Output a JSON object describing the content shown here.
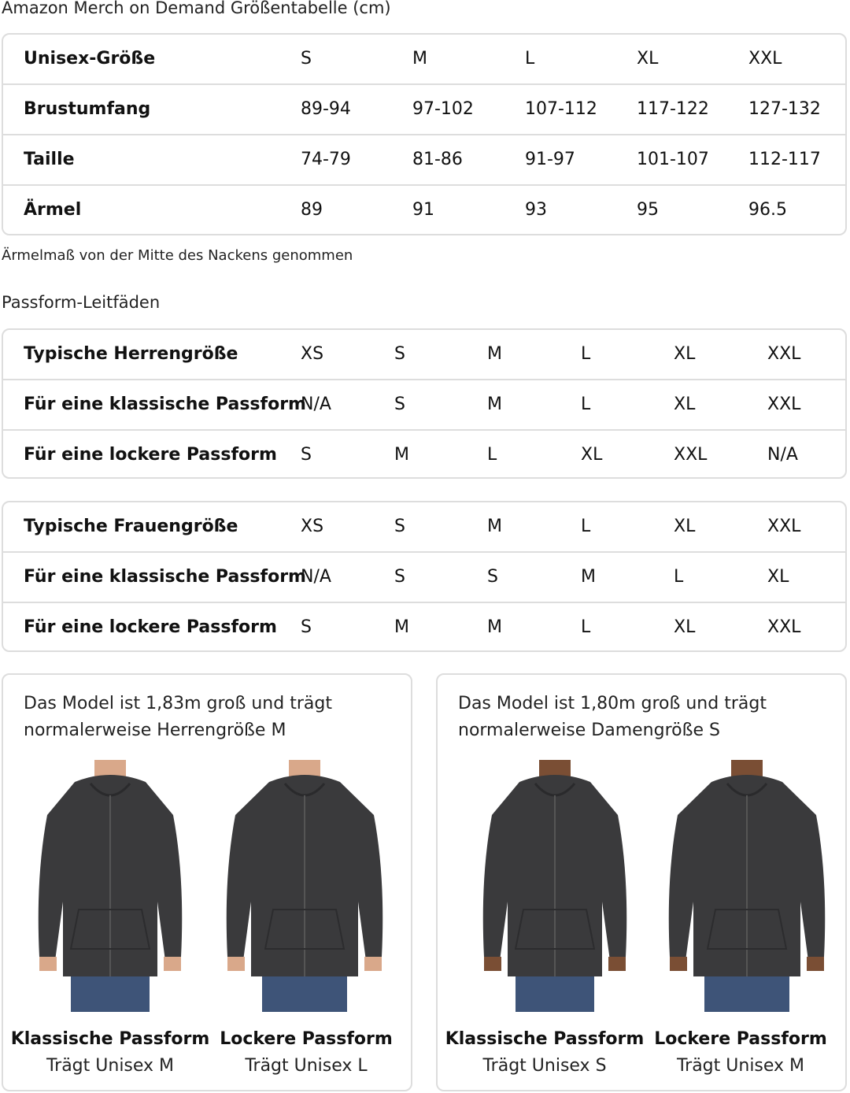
{
  "title": "Amazon Merch on Demand Größentabelle (cm)",
  "unisex_table": {
    "rows": [
      {
        "label": "Unisex-Größe",
        "values": [
          "S",
          "M",
          "L",
          "XL",
          "XXL"
        ]
      },
      {
        "label": "Brustumfang",
        "values": [
          "89-94",
          "97-102",
          "107-112",
          "117-122",
          "127-132"
        ]
      },
      {
        "label": "Taille",
        "values": [
          "74-79",
          "81-86",
          "91-97",
          "101-107",
          "112-117"
        ]
      },
      {
        "label": "Ärmel",
        "values": [
          "89",
          "91",
          "93",
          "95",
          "96.5"
        ]
      }
    ]
  },
  "note": "Ärmelmaß von der Mitte des Nackens genommen",
  "fit_guide_title": "Passform-Leitfäden",
  "men_table": {
    "rows": [
      {
        "label": "Typische Herrengröße",
        "values": [
          "XS",
          "S",
          "M",
          "L",
          "XL",
          "XXL"
        ]
      },
      {
        "label": "Für eine klassische Passform",
        "values": [
          "N/A",
          "S",
          "M",
          "L",
          "XL",
          "XXL"
        ]
      },
      {
        "label": "Für eine lockere Passform",
        "values": [
          "S",
          "M",
          "L",
          "XL",
          "XXL",
          "N/A"
        ]
      }
    ]
  },
  "women_table": {
    "rows": [
      {
        "label": "Typische Frauengröße",
        "values": [
          "XS",
          "S",
          "M",
          "L",
          "XL",
          "XXL"
        ]
      },
      {
        "label": "Für eine klassische Passform",
        "values": [
          "N/A",
          "S",
          "S",
          "M",
          "L",
          "XL"
        ]
      },
      {
        "label": "Für eine lockere Passform",
        "values": [
          "S",
          "M",
          "M",
          "L",
          "XL",
          "XXL"
        ]
      }
    ]
  },
  "cards": [
    {
      "text": "Das Model ist 1,83m groß und trägt normalerweise Herrengröße M",
      "figures": [
        {
          "fit": "Klassische Passform",
          "wears": "Trägt Unisex M",
          "skin": "#d9a88a"
        },
        {
          "fit": "Lockere Passform",
          "wears": "Trägt Unisex L",
          "skin": "#d9a88a"
        }
      ]
    },
    {
      "text": "Das Model ist 1,80m groß und trägt normalerweise Damengröße S",
      "figures": [
        {
          "fit": "Klassische Passform",
          "wears": "Trägt Unisex S",
          "skin": "#7a4e34"
        },
        {
          "fit": "Lockere Passform",
          "wears": "Trägt Unisex M",
          "skin": "#7a4e34"
        }
      ]
    }
  ],
  "colors": {
    "hoodie": "#3a3a3c",
    "jeans": "#3e5478",
    "border": "#dddddd"
  }
}
